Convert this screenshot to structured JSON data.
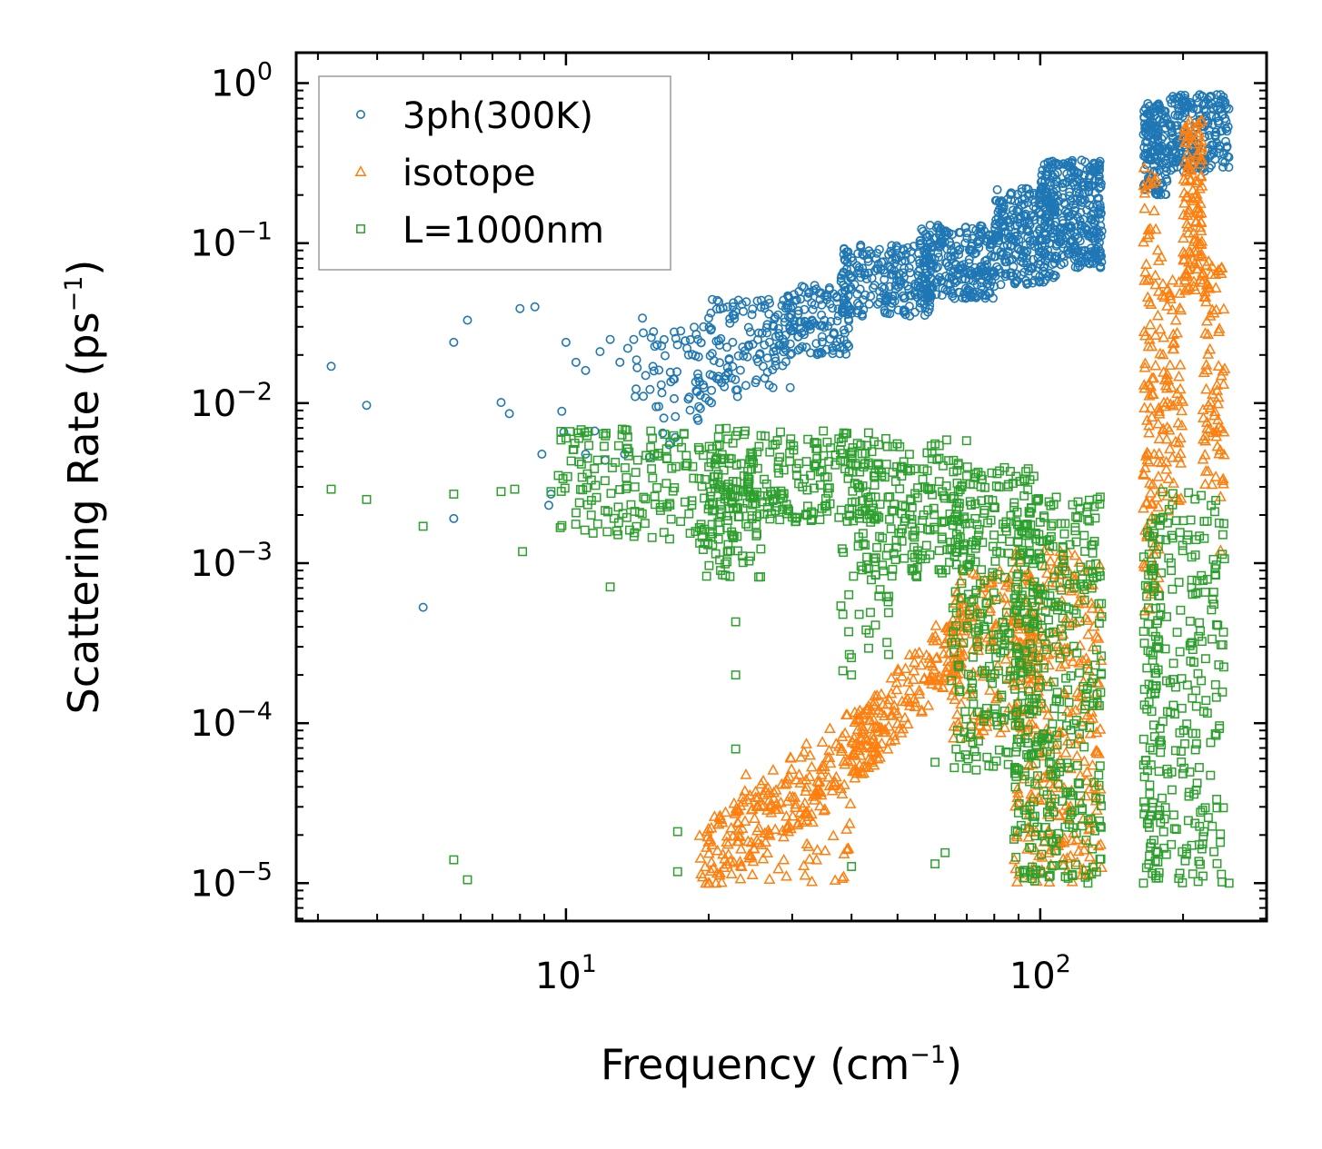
{
  "chart_data": {
    "type": "scatter",
    "xscale": "log",
    "yscale": "log",
    "xlim": [
      2.7,
      300
    ],
    "ylim": [
      5.8e-06,
      1.55
    ],
    "xlabel": {
      "text": "Frequency (cm",
      "sup": "−1",
      "close": ")"
    },
    "ylabel": {
      "text": "Scattering Rate (ps",
      "sup": "−1",
      "close": ")"
    },
    "xticks": [
      {
        "value": 10,
        "base": "10",
        "exp": "1"
      },
      {
        "value": 100,
        "base": "10",
        "exp": "2"
      }
    ],
    "yticks": [
      {
        "value": 1,
        "base": "10",
        "exp": "0"
      },
      {
        "value": 0.1,
        "base": "10",
        "exp": "−1"
      },
      {
        "value": 0.01,
        "base": "10",
        "exp": "−2"
      },
      {
        "value": 0.001,
        "base": "10",
        "exp": "−3"
      },
      {
        "value": 0.0001,
        "base": "10",
        "exp": "−4"
      },
      {
        "value": 1e-05,
        "base": "10",
        "exp": "−5"
      }
    ],
    "legend_position": "upper-left",
    "series": [
      {
        "name": "3ph(300K)",
        "marker": "circle",
        "color": "#1f77b4",
        "points": [
          [
            3.2,
            0.017
          ],
          [
            3.8,
            0.0097
          ],
          [
            5.0,
            0.00053
          ],
          [
            5.8,
            0.024
          ],
          [
            5.8,
            0.0019
          ],
          [
            6.2,
            0.033
          ],
          [
            7.3,
            0.0101
          ],
          [
            7.6,
            0.0086
          ],
          [
            8.0,
            0.039
          ],
          [
            8.6,
            0.04
          ],
          [
            8.9,
            0.0048
          ],
          [
            9.2,
            0.0023
          ],
          [
            9.3,
            0.0027
          ],
          [
            9.8,
            0.0089
          ],
          [
            9.9,
            0.0066
          ],
          [
            10.0,
            0.024
          ],
          [
            10.5,
            0.018
          ],
          [
            11.0,
            0.016
          ],
          [
            11.0,
            0.0048
          ],
          [
            11.5,
            0.0067
          ],
          [
            11.8,
            0.021
          ],
          [
            12.1,
            0.0044
          ],
          [
            12.4,
            0.025
          ],
          [
            13.0,
            0.018
          ],
          [
            13.3,
            0.0048
          ],
          [
            13.5,
            0.022
          ],
          [
            13.9,
            0.025
          ],
          [
            14.5,
            0.034
          ],
          [
            15.3,
            0.028
          ],
          [
            16.0,
            0.0065
          ],
          [
            17.0,
            0.0061
          ],
          [
            18.0,
            0.022
          ],
          [
            19.5,
            0.03
          ],
          [
            20.0,
            0.034
          ],
          [
            21.0,
            0.043
          ],
          [
            22.5,
            0.04
          ],
          [
            24.0,
            0.043
          ],
          [
            23.0,
            0.011
          ],
          [
            19.0,
            0.0078
          ],
          [
            16.5,
            0.0055
          ],
          [
            15.0,
            0.0046
          ],
          [
            14.0,
            0.011
          ],
          [
            15.5,
            0.0095
          ]
        ],
        "bands": [
          {
            "x": [
              14,
              22
            ],
            "y": [
              0.008,
              0.03
            ],
            "count": 70
          },
          {
            "x": [
              20,
              30
            ],
            "y": [
              0.012,
              0.045
            ],
            "count": 110
          },
          {
            "x": [
              28,
              40
            ],
            "y": [
              0.02,
              0.055
            ],
            "count": 140
          },
          {
            "x": [
              38,
              60
            ],
            "y": [
              0.035,
              0.1
            ],
            "count": 220
          },
          {
            "x": [
              55,
              80
            ],
            "y": [
              0.045,
              0.13
            ],
            "count": 260
          },
          {
            "x": [
              80,
              108
            ],
            "y": [
              0.055,
              0.22
            ],
            "count": 260
          },
          {
            "x": [
              100,
              135
            ],
            "y": [
              0.07,
              0.33
            ],
            "count": 320
          },
          {
            "x": [
              165,
              185
            ],
            "y": [
              0.2,
              0.75
            ],
            "count": 150
          },
          {
            "x": [
              185,
              250
            ],
            "y": [
              0.28,
              0.85
            ],
            "count": 220
          }
        ]
      },
      {
        "name": "isotope",
        "marker": "triangle",
        "color": "#ff7f0e",
        "points": [
          [
            168,
            0.0078
          ],
          [
            168,
            0.0049
          ],
          [
            168,
            0.0024
          ],
          [
            168,
            0.0015
          ],
          [
            240,
            0.0026
          ],
          [
            240,
            0.0012
          ],
          [
            170,
            0.025
          ],
          [
            175,
            0.055
          ],
          [
            180,
            0.082
          ],
          [
            238,
            0.028
          ],
          [
            236,
            0.012
          ]
        ],
        "bands": [
          {
            "x": [
              19,
              45
            ],
            "y": [
              1e-05,
              0.00012
            ],
            "count": 200,
            "trend": true
          },
          {
            "x": [
              23,
              40
            ],
            "y": [
              1e-05,
              5e-05
            ],
            "count": 80
          },
          {
            "x": [
              40,
              70
            ],
            "y": [
              5e-05,
              0.0005
            ],
            "count": 180,
            "trend": true
          },
          {
            "x": [
              65,
              100
            ],
            "y": [
              8e-05,
              0.0009
            ],
            "count": 180
          },
          {
            "x": [
              88,
              135
            ],
            "y": [
              1e-05,
              0.0012
            ],
            "count": 300
          },
          {
            "x": [
              165,
              178
            ],
            "y": [
              0.0005,
              0.3
            ],
            "count": 100
          },
          {
            "x": [
              178,
              200
            ],
            "y": [
              0.002,
              0.06
            ],
            "count": 80
          },
          {
            "x": [
              200,
              220
            ],
            "y": [
              0.05,
              0.6
            ],
            "count": 120
          },
          {
            "x": [
              220,
              245
            ],
            "y": [
              0.003,
              0.08
            ],
            "count": 80
          }
        ]
      },
      {
        "name": "L=1000nm",
        "marker": "square",
        "color": "#2ca02c",
        "points": [
          [
            3.2,
            0.0029
          ],
          [
            3.8,
            0.0025
          ],
          [
            5.0,
            0.0017
          ],
          [
            5.8,
            0.0027
          ],
          [
            5.8,
            1.4e-05
          ],
          [
            6.2,
            1.05e-05
          ],
          [
            7.3,
            0.0028
          ],
          [
            7.8,
            0.0029
          ],
          [
            8.1,
            0.00118
          ],
          [
            9.3,
            0.0028
          ],
          [
            12.4,
            0.00071
          ],
          [
            17.2,
            2.1e-05
          ],
          [
            17.2,
            1.18e-05
          ],
          [
            22.8,
            0.00043
          ],
          [
            22.8,
            0.0002
          ],
          [
            22.8,
            6.9e-05
          ],
          [
            38.0,
            0.00054
          ],
          [
            40.0,
            0.0002
          ],
          [
            40.0,
            1.27e-05
          ],
          [
            60.0,
            5.7e-05
          ],
          [
            60.0,
            1.32e-05
          ],
          [
            82.0,
            6.8e-05
          ],
          [
            63.0,
            1.55e-05
          ],
          [
            125.0,
            1.2e-05
          ],
          [
            165,
            1e-05
          ],
          [
            250,
            1e-05
          ]
        ],
        "bands": [
          {
            "x": [
              9.5,
              25
            ],
            "y": [
              0.0014,
              0.007
            ],
            "count": 200
          },
          {
            "x": [
              20,
              45
            ],
            "y": [
              0.0018,
              0.0068
            ],
            "count": 220
          },
          {
            "x": [
              19,
              26
            ],
            "y": [
              0.0008,
              0.002
            ],
            "count": 40
          },
          {
            "x": [
              40,
              70
            ],
            "y": [
              0.0008,
              0.006
            ],
            "count": 200
          },
          {
            "x": [
              38,
              48
            ],
            "y": [
              0.0002,
              0.0015
            ],
            "count": 30
          },
          {
            "x": [
              65,
              100
            ],
            "y": [
              5e-05,
              0.004
            ],
            "count": 300
          },
          {
            "x": [
              88,
              135
            ],
            "y": [
              1e-05,
              0.0026
            ],
            "count": 380
          },
          {
            "x": [
              165,
              178
            ],
            "y": [
              1e-05,
              0.002
            ],
            "count": 100
          },
          {
            "x": [
              178,
              245
            ],
            "y": [
              1e-05,
              0.003
            ],
            "count": 200
          }
        ]
      }
    ]
  }
}
